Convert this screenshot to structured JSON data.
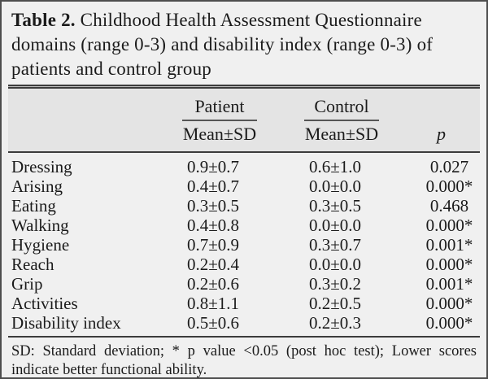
{
  "table": {
    "title_bold": "Table 2.",
    "title_rest": " Childhood Health Assessment Questionnaire domains (range 0-3) and disability index (range 0-3) of patients and control group",
    "columns": {
      "patient_group": "Patient",
      "control_group": "Control",
      "patient_sub": "Mean±SD",
      "control_sub": "Mean±SD",
      "p": "p"
    },
    "rows": [
      {
        "label": "Dressing",
        "patient": "0.9±0.7",
        "control": "0.6±1.0",
        "p": "0.027"
      },
      {
        "label": "Arising",
        "patient": "0.4±0.7",
        "control": "0.0±0.0",
        "p": "0.000*"
      },
      {
        "label": "Eating",
        "patient": "0.3±0.5",
        "control": "0.3±0.5",
        "p": "0.468"
      },
      {
        "label": "Walking",
        "patient": "0.4±0.8",
        "control": "0.0±0.0",
        "p": "0.000*"
      },
      {
        "label": "Hygiene",
        "patient": "0.7±0.9",
        "control": "0.3±0.7",
        "p": "0.001*"
      },
      {
        "label": "Reach",
        "patient": "0.2±0.4",
        "control": "0.0±0.0",
        "p": "0.000*"
      },
      {
        "label": "Grip",
        "patient": "0.2±0.6",
        "control": "0.3±0.2",
        "p": "0.001*"
      },
      {
        "label": "Activities",
        "patient": "0.8±1.1",
        "control": "0.2±0.5",
        "p": "0.000*"
      },
      {
        "label": "Disability index",
        "patient": "0.5±0.6",
        "control": "0.2±0.3",
        "p": "0.000*"
      }
    ],
    "footnote": "SD: Standard deviation; * p value <0.05 (post hoc test); Lower scores indicate better functional ability."
  },
  "colors": {
    "panel_background": "#f0f0f0",
    "header_band_background": "#e4e4e4",
    "rule": "#3c3c3c",
    "border": "#4e4e4e",
    "text": "#1b1b1b"
  }
}
